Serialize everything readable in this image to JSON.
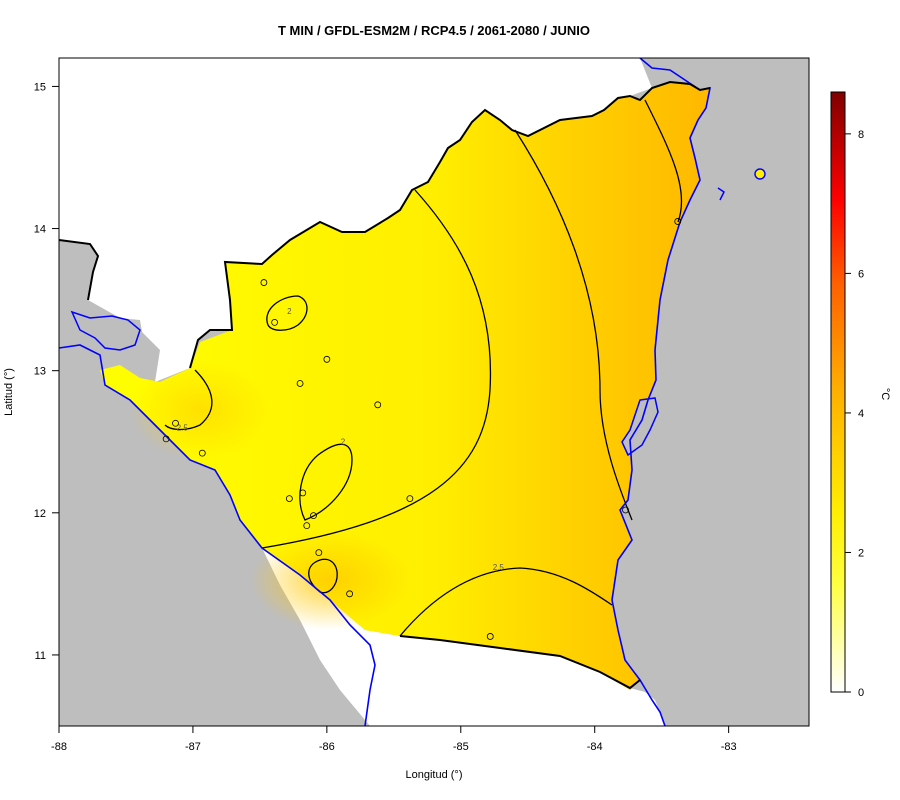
{
  "title": "T MIN / GFDL-ESM2M / RCP4.5 / 2061-2080 / JUNIO",
  "xlabel": "Longitud (°)",
  "ylabel": "Latitud (°)",
  "x_ticks": [
    {
      "value": -88,
      "label": "-88"
    },
    {
      "value": -87,
      "label": "-87"
    },
    {
      "value": -86,
      "label": "-86"
    },
    {
      "value": -85,
      "label": "-85"
    },
    {
      "value": -84,
      "label": "-84"
    },
    {
      "value": -83,
      "label": "-83"
    }
  ],
  "y_ticks": [
    {
      "value": 11,
      "label": "11"
    },
    {
      "value": 12,
      "label": "12"
    },
    {
      "value": 13,
      "label": "13"
    },
    {
      "value": 14,
      "label": "14"
    },
    {
      "value": 15,
      "label": "15"
    }
  ],
  "xlim": [
    -88,
    -82.4
  ],
  "ylim": [
    10.5,
    15.2
  ],
  "legend": {
    "unit": "°C",
    "range": [
      0,
      8.6
    ],
    "ticks": [
      {
        "value": 0,
        "label": "0"
      },
      {
        "value": 2,
        "label": "2"
      },
      {
        "value": 4,
        "label": "4"
      },
      {
        "value": 6,
        "label": "6"
      },
      {
        "value": 8,
        "label": "8"
      }
    ],
    "colors": [
      "#ffffff",
      "#ffff00",
      "#ffbf00",
      "#ff8000",
      "#ff0000",
      "#8b0000"
    ]
  },
  "contour_labels": [
    {
      "text": "2",
      "lon": -86.28,
      "lat": 13.42
    },
    {
      "text": "2.5",
      "lon": -87.08,
      "lat": 12.6
    },
    {
      "text": "2",
      "lon": -85.88,
      "lat": 12.5
    },
    {
      "text": "2.5",
      "lon": -84.72,
      "lat": 11.62
    }
  ],
  "stations": [
    {
      "lon": -86.47,
      "lat": 13.62
    },
    {
      "lon": -86.39,
      "lat": 13.34
    },
    {
      "lon": -86.0,
      "lat": 13.08
    },
    {
      "lon": -86.2,
      "lat": 12.91
    },
    {
      "lon": -85.62,
      "lat": 12.76
    },
    {
      "lon": -87.13,
      "lat": 12.63
    },
    {
      "lon": -87.2,
      "lat": 12.52
    },
    {
      "lon": -86.93,
      "lat": 12.42
    },
    {
      "lon": -86.28,
      "lat": 12.1
    },
    {
      "lon": -86.18,
      "lat": 12.14
    },
    {
      "lon": -86.1,
      "lat": 11.98
    },
    {
      "lon": -86.15,
      "lat": 11.91
    },
    {
      "lon": -85.38,
      "lat": 12.1
    },
    {
      "lon": -86.06,
      "lat": 11.72
    },
    {
      "lon": -85.83,
      "lat": 11.43
    },
    {
      "lon": -84.78,
      "lat": 11.13
    },
    {
      "lon": -83.77,
      "lat": 12.02
    },
    {
      "lon": -83.38,
      "lat": 14.05
    }
  ],
  "colors": {
    "sea": "#bebebe",
    "coast": "#0000ff",
    "border": "#000000",
    "field_low": "#ffff00",
    "field_high": "#ffbf00"
  }
}
